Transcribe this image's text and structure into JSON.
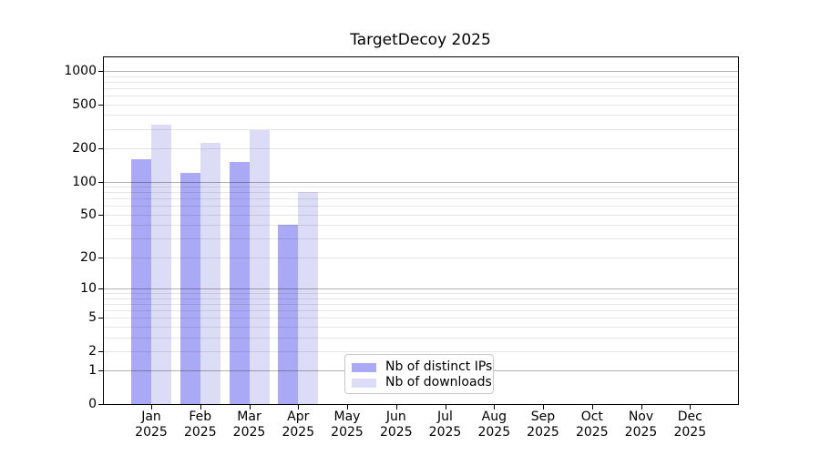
{
  "chart_data": {
    "type": "bar",
    "title": "TargetDecoy 2025",
    "categories": [
      "Jan",
      "Feb",
      "Mar",
      "Apr",
      "May",
      "Jun",
      "Jul",
      "Aug",
      "Sep",
      "Oct",
      "Nov",
      "Dec"
    ],
    "category_year": "2025",
    "series": [
      {
        "name": "Nb of distinct IPs",
        "color": "#a9a9f5",
        "values": [
          160,
          120,
          150,
          40,
          0,
          0,
          0,
          0,
          0,
          0,
          0,
          0
        ]
      },
      {
        "name": "Nb of downloads",
        "color": "#dcdcf7",
        "values": [
          330,
          225,
          290,
          80,
          0,
          0,
          0,
          0,
          0,
          0,
          0,
          0
        ]
      }
    ],
    "y_axis": {
      "scale": "log10(value+1)",
      "labeled_ticks": [
        0,
        1,
        2,
        5,
        10,
        20,
        50,
        100,
        200,
        500,
        1000
      ],
      "major_gridlines": [
        1,
        10,
        100,
        1000
      ],
      "minor_gridlines": [
        2,
        3,
        4,
        5,
        6,
        7,
        8,
        9,
        20,
        30,
        40,
        50,
        60,
        70,
        80,
        90,
        200,
        300,
        400,
        500,
        600,
        700,
        800,
        900
      ],
      "ylim": [
        0,
        1350
      ]
    },
    "x_axis": {
      "label_line2": "2025"
    },
    "legend": {
      "position": "lower-center",
      "entries": [
        "Nb of distinct IPs",
        "Nb of downloads"
      ]
    },
    "grid": true,
    "background": "#ffffff"
  }
}
